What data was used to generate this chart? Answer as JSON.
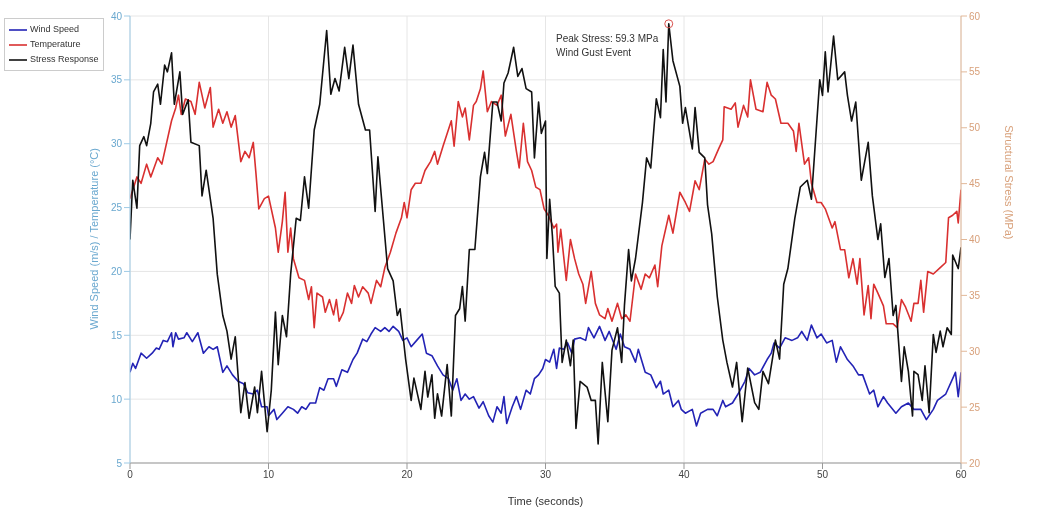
{
  "chart_data": {
    "type": "line",
    "xlabel": "Time (seconds)",
    "ylabel": "Wind Speed (m/s) / Temperature (°C)",
    "y2label": "Structural Stress (MPa)",
    "xlim": [
      0,
      60
    ],
    "xticks": [
      0,
      10,
      20,
      30,
      40,
      50,
      60
    ],
    "ylim": [
      5,
      40
    ],
    "yticks": [
      5,
      10,
      15,
      20,
      25,
      30,
      35,
      40
    ],
    "y2lim": [
      20,
      60
    ],
    "y2ticks": [
      20,
      25,
      30,
      35,
      40,
      45,
      50,
      55,
      60
    ],
    "grid": true,
    "legend": "top left",
    "marker": "none",
    "line_style": "solid",
    "annotations": [
      "Peak Stress: 59.3 MPa",
      "Wind Gust Event"
    ],
    "series": [
      {
        "name": "Wind Speed",
        "color": "#2323b5",
        "x": [
          0,
          0.2,
          0.4,
          0.8,
          1.2,
          1.6,
          1.9,
          2.1,
          2.4,
          2.7,
          3,
          3.1,
          3.3,
          3.5,
          3.9,
          4.1,
          4.5,
          4.9,
          5.3,
          5.7,
          6,
          6.3,
          6.7,
          7,
          7.4,
          7.8,
          8.2,
          8.5,
          8.9,
          9.2,
          9.5,
          9.9,
          10,
          10.4,
          10.6,
          11,
          11.4,
          11.8,
          12.1,
          12.4,
          12.7,
          13,
          13.4,
          13.7,
          14,
          14.3,
          14.7,
          14.9,
          15.3,
          15.7,
          16.1,
          16.4,
          16.8,
          17.1,
          17.4,
          17.7,
          18.1,
          18.4,
          18.7,
          19,
          19.4,
          19.7,
          20,
          20.3,
          20.7,
          21.1,
          21.4,
          21.8,
          22.2,
          22.6,
          23,
          23.3,
          23.6,
          23.9,
          24.2,
          24.5,
          24.8,
          25.2,
          25.5,
          25.9,
          26.2,
          26.5,
          26.8,
          27,
          27.2,
          27.6,
          27.9,
          28.2,
          28.6,
          28.9,
          29.2,
          29.5,
          29.8,
          30,
          30.3,
          30.6,
          30.8,
          31,
          31.3,
          31.6,
          31.9,
          32.1,
          32.5,
          32.9,
          33.1,
          33.5,
          33.9,
          34.3,
          34.6,
          35.1,
          35.4,
          35.7,
          36.1,
          36.5,
          36.7,
          37.2,
          37.6,
          38,
          38.3,
          38.5,
          38.9,
          39.2,
          39.6,
          39.8,
          40.1,
          40.6,
          40.9,
          41.2,
          41.7,
          42.1,
          42.4,
          42.8,
          43,
          43.5,
          43.9,
          44.4,
          44.7,
          45.1,
          45.5,
          46,
          46.3,
          46.5,
          46.9,
          47.3,
          47.8,
          48.2,
          48.5,
          48.9,
          49.2,
          49.6,
          49.9,
          50.3,
          50.7,
          51,
          51.3,
          51.8,
          52.2,
          52.6,
          52.9,
          53.4,
          53.7,
          54,
          54.4,
          54.7,
          55.3,
          55.7,
          56.2,
          56.6,
          57.1,
          57.5,
          58,
          58.3,
          58.9,
          59.6,
          59.8,
          60
        ],
        "values": [
          12.1,
          12.8,
          12.4,
          13.6,
          13.2,
          13.6,
          14,
          13.9,
          14.6,
          14.5,
          15.2,
          14.1,
          15.2,
          14.7,
          14.8,
          15.2,
          14.5,
          15.2,
          13.6,
          14.1,
          13.9,
          14.1,
          12.1,
          12.6,
          11.9,
          11.4,
          11.2,
          10.5,
          10.4,
          10.7,
          9.4,
          9.4,
          8.7,
          9.2,
          8.4,
          8.9,
          9.4,
          9.2,
          8.9,
          9.4,
          9.2,
          9.7,
          9.7,
          10.9,
          10.7,
          11.6,
          11.6,
          11,
          12.3,
          12.1,
          13.1,
          13.6,
          14.7,
          14.5,
          15.1,
          15.6,
          15.3,
          15.6,
          15.3,
          15.7,
          15.3,
          14.6,
          14.8,
          14.1,
          14.6,
          15.1,
          13.6,
          13.4,
          12.6,
          11.9,
          11.6,
          10.7,
          11.6,
          9.9,
          10.4,
          10,
          10.2,
          9.3,
          9.8,
          8.7,
          8.2,
          9.4,
          8.9,
          10.2,
          8.1,
          9.4,
          10.2,
          9.2,
          10.7,
          10.4,
          11.6,
          11.9,
          12.4,
          13.1,
          12.9,
          13.9,
          12.4,
          14,
          13.9,
          14.4,
          13.6,
          14.7,
          14.8,
          14.6,
          15.6,
          14.8,
          15.7,
          14.6,
          15.3,
          13.9,
          15.1,
          14.1,
          13.9,
          12.9,
          13.9,
          12.1,
          11.9,
          10.9,
          11.4,
          10.4,
          10.7,
          9.4,
          9.9,
          9.2,
          8.9,
          9.2,
          7.9,
          8.9,
          9.2,
          9.2,
          8.7,
          9.9,
          9.4,
          9.7,
          10.4,
          11.4,
          12.4,
          11.9,
          12.1,
          13.1,
          13.6,
          14.4,
          14,
          14.8,
          14.6,
          14.8,
          15.3,
          14.6,
          15.8,
          14.8,
          15.1,
          14.4,
          14.6,
          12.9,
          14.1,
          13.1,
          12.6,
          11.9,
          11.9,
          10.4,
          10.7,
          9.4,
          10.2,
          9.7,
          8.9,
          9.4,
          9.7,
          9.2,
          9.2,
          8.4,
          9.2,
          9.9,
          10.4,
          12.1,
          10.2,
          12.1
        ]
      },
      {
        "name": "Temperature",
        "color": "#d93030",
        "x": [
          0,
          0.5,
          0.8,
          1.2,
          1.5,
          2,
          2.3,
          3,
          3.3,
          3.5,
          3.7,
          4,
          4.4,
          4.7,
          5,
          5.4,
          5.8,
          6,
          6.4,
          6.7,
          7,
          7.3,
          7.6,
          8,
          8.3,
          8.6,
          8.9,
          9.1,
          9.3,
          9.7,
          10,
          10.5,
          10.7,
          11,
          11.2,
          11.4,
          11.6,
          11.8,
          12.2,
          12.6,
          12.9,
          13.1,
          13.3,
          13.5,
          13.9,
          14.1,
          14.4,
          14.7,
          14.9,
          15.1,
          15.4,
          15.7,
          16,
          16.2,
          16.5,
          16.8,
          17.2,
          17.4,
          17.8,
          18.1,
          18.4,
          18.8,
          19.2,
          19.6,
          19.8,
          20,
          20.3,
          20.6,
          21,
          21.3,
          21.7,
          22,
          22.2,
          22.6,
          22.9,
          23.2,
          23.4,
          23.7,
          24,
          24.2,
          24.5,
          24.8,
          25,
          25.3,
          25.5,
          25.8,
          26.1,
          26.5,
          26.8,
          27.1,
          27.5,
          27.9,
          28.1,
          28.4,
          28.7,
          29,
          29.3,
          29.6,
          29.9,
          30.2,
          30.6,
          30.8,
          30.9,
          31.1,
          31.5,
          31.8,
          32.1,
          32.4,
          32.7,
          32.9,
          33.3,
          33.6,
          33.9,
          34.3,
          34.5,
          34.8,
          35.2,
          35.5,
          35.8,
          36.1,
          36.5,
          36.9,
          37.2,
          37.5,
          37.9,
          38.1,
          38.4,
          38.9,
          39.2,
          39.7,
          40.1,
          40.4,
          40.8,
          41.1,
          41.5,
          41.8,
          42.1,
          42.5,
          42.8,
          42.9,
          43.4,
          43.7,
          43.9,
          44.3,
          44.6,
          44.8,
          45.2,
          45.7,
          46,
          46.3,
          46.6,
          47,
          47.5,
          47.9,
          48.1,
          48.3,
          48.7,
          49,
          49.2,
          49.6,
          49.9,
          50.2,
          50.7,
          50.9,
          51.3,
          51.6,
          51.9,
          52.2,
          52.5,
          52.7,
          53,
          53.3,
          53.5,
          53.7,
          54,
          54.4,
          54.6,
          55.1,
          55.4,
          55.7,
          56,
          56.4,
          56.6,
          56.9,
          57.1,
          57.3,
          57.6,
          58,
          58.5,
          58.9,
          59.1,
          59.4,
          59.7,
          59.8,
          60
        ],
        "values": [
          25.7,
          27.4,
          26.9,
          28.4,
          27.4,
          28.9,
          28.4,
          31.8,
          32.8,
          33.8,
          32.3,
          33.5,
          33.3,
          32.3,
          34.8,
          32.8,
          34.4,
          31.3,
          32.7,
          31.6,
          32.5,
          31.3,
          32.2,
          28.6,
          29.4,
          28.9,
          30.1,
          27.6,
          24.9,
          25.7,
          25.9,
          23.4,
          21.5,
          23.9,
          26.2,
          21.5,
          23.4,
          21,
          19.5,
          19.3,
          17.8,
          18.8,
          15.6,
          18.3,
          18,
          16.8,
          17.8,
          16.6,
          17.8,
          16.1,
          16.8,
          18.3,
          17.5,
          18.9,
          18,
          18.8,
          18.3,
          17.5,
          19.3,
          18.8,
          20.3,
          21.5,
          23,
          24.2,
          25.4,
          24.2,
          26.4,
          26.9,
          26.9,
          27.9,
          28.6,
          29.4,
          28.4,
          29.8,
          30.8,
          31.8,
          29.8,
          33.3,
          32.1,
          32.8,
          30.3,
          33,
          33.3,
          34.3,
          35.7,
          32.5,
          33.3,
          33,
          33.8,
          30.6,
          32.3,
          29.4,
          28.1,
          31.6,
          28.6,
          27.9,
          26.6,
          26.4,
          24.9,
          24.4,
          23.4,
          23.7,
          21.5,
          23.3,
          19.3,
          22.5,
          21,
          19.8,
          19,
          17.5,
          20,
          17.5,
          16.6,
          16.3,
          17.1,
          16.1,
          17.5,
          16.3,
          16.6,
          16.1,
          19.8,
          18.6,
          19.8,
          19.5,
          20.5,
          18.8,
          22,
          24.4,
          23,
          26.2,
          25.4,
          24.7,
          27.1,
          26.4,
          28.8,
          28.4,
          28.6,
          29.6,
          30.3,
          32.9,
          32.7,
          33.2,
          31.3,
          33,
          32.1,
          35,
          32.7,
          32.5,
          34.8,
          33.8,
          33.5,
          31.6,
          31.6,
          31,
          29.4,
          31.6,
          28.4,
          28.9,
          26.9,
          25.4,
          25.4,
          24.9,
          23.4,
          23.9,
          21.7,
          21.7,
          19.5,
          21,
          19,
          21,
          16.6,
          18.9,
          16.3,
          19,
          18.3,
          17.3,
          15.9,
          15.9,
          15.6,
          17.8,
          17.2,
          16.1,
          17.5,
          17.5,
          19.3,
          16.8,
          20,
          19.8,
          20.3,
          20.7,
          24.2,
          24.4,
          24.7,
          23.8,
          26.4
        ]
      },
      {
        "name": "Stress Response",
        "color": "#111111",
        "axis": "y2",
        "x": [
          0,
          0.2,
          0.5,
          0.7,
          1,
          1.2,
          1.5,
          1.7,
          2,
          2.2,
          2.5,
          2.7,
          3,
          3.2,
          3.6,
          3.8,
          4.2,
          4.4,
          5,
          5.2,
          5.5,
          6,
          6.3,
          6.7,
          7,
          7.3,
          7.6,
          8,
          8.3,
          8.6,
          9,
          9.2,
          9.5,
          9.9,
          10.2,
          10.5,
          10.7,
          11,
          11.3,
          11.6,
          12,
          12.3,
          12.6,
          12.9,
          13.3,
          13.7,
          14.2,
          14.5,
          14.8,
          15.1,
          15.5,
          15.8,
          16.1,
          16.5,
          17,
          17.3,
          17.7,
          17.9,
          18.3,
          18.6,
          19,
          19.3,
          19.5,
          19.9,
          20.3,
          20.5,
          21,
          21.3,
          21.5,
          21.8,
          22,
          22.2,
          22.5,
          22.9,
          23.2,
          23.5,
          23.8,
          24,
          24.2,
          24.5,
          24.9,
          25.3,
          25.6,
          25.8,
          26.2,
          26.5,
          26.8,
          27,
          27.3,
          27.7,
          28,
          28.3,
          28.6,
          29,
          29.2,
          29.5,
          29.7,
          30,
          30.1,
          30.3,
          30.5,
          30.7,
          31,
          31.2,
          31.5,
          31.8,
          32,
          32.2,
          32.5,
          33,
          33.3,
          33.6,
          33.8,
          34.1,
          34.5,
          34.8,
          35.2,
          35.5,
          35.7,
          36,
          36.2,
          36.5,
          37,
          37.3,
          37.6,
          38,
          38.3,
          38.5,
          38.7,
          38.9,
          39.2,
          39.7,
          39.9,
          40.1,
          40.6,
          40.8,
          41.1,
          41.5,
          41.7,
          42,
          42.4,
          42.8,
          43.1,
          43.5,
          43.8,
          44.2,
          44.6,
          45.1,
          45.4,
          45.7,
          46.1,
          46.6,
          46.9,
          47.2,
          47.5,
          48,
          48.4,
          48.9,
          49.2,
          49.8,
          50,
          50.2,
          50.4,
          50.8,
          51.1,
          51.6,
          51.8,
          52.1,
          52.4,
          52.8,
          53.3,
          53.6,
          54,
          54.2,
          54.5,
          54.8,
          55.1,
          55.3,
          55.7,
          55.9,
          56.2,
          56.5,
          56.6,
          56.9,
          57.2,
          57.4,
          57.7,
          58,
          58.2,
          58.5,
          58.7,
          59,
          59.3,
          59.4,
          59.8,
          60
        ],
        "values": [
          40,
          45.3,
          42.8,
          48.4,
          49.2,
          48.4,
          50.4,
          53.2,
          53.9,
          52.1,
          55.6,
          55,
          56.7,
          52.1,
          55,
          51.2,
          52.5,
          48.7,
          48.4,
          43.9,
          46.2,
          41.9,
          36.9,
          33.2,
          31.8,
          29.3,
          31.3,
          24.5,
          27.2,
          24,
          26.8,
          24.5,
          28.2,
          22.8,
          26.5,
          33.5,
          28.8,
          33.2,
          31.3,
          36.9,
          41.9,
          41.7,
          45.6,
          42.8,
          49.8,
          52.1,
          58.7,
          53,
          54.4,
          53.3,
          57.2,
          54.4,
          57.4,
          52.1,
          49.8,
          49.8,
          42.5,
          47.4,
          41.7,
          37.4,
          36.3,
          33.2,
          33.8,
          29.3,
          25.6,
          27.6,
          24.8,
          28.2,
          25.9,
          27.9,
          24,
          26.2,
          24.2,
          28.8,
          24.2,
          33.2,
          33.8,
          35.8,
          32.7,
          39.1,
          39.1,
          45.6,
          47.8,
          45.9,
          52.3,
          52.3,
          50.6,
          54,
          54.9,
          57.2,
          54.6,
          55.3,
          53.5,
          53.2,
          47.3,
          52.3,
          49.5,
          50.6,
          38.3,
          43.6,
          40.3,
          35.8,
          35.2,
          29,
          31,
          28.7,
          31,
          23.1,
          27.3,
          26.8,
          25.6,
          25.6,
          21.7,
          29,
          23.7,
          30.1,
          32.1,
          29,
          34.1,
          39.1,
          36.3,
          38.3,
          43.3,
          47.3,
          46.4,
          52.6,
          50.9,
          57,
          52.3,
          59.3,
          56,
          53.7,
          50.4,
          51.8,
          48.1,
          51.8,
          47.8,
          47.3,
          43.1,
          40.5,
          34.9,
          31,
          29,
          26.8,
          29,
          23.7,
          28.5,
          25.4,
          24.8,
          28.2,
          27.1,
          31,
          29.3,
          36,
          37.4,
          41.9,
          44.7,
          45.3,
          43.6,
          54.3,
          52.9,
          56.8,
          53.2,
          58.2,
          54.3,
          55,
          52.9,
          50.6,
          52.3,
          45.3,
          48.7,
          43.9,
          40,
          41.4,
          36.6,
          38.3,
          33.2,
          34.1,
          27.3,
          30.4,
          28.2,
          24.2,
          28.2,
          27.9,
          25.6,
          28.7,
          24.5,
          31.5,
          29.9,
          31.8,
          30.4,
          32.1,
          31.5,
          38.6,
          37.4,
          39.3
        ]
      },
      {
        "type": "scatter",
        "color": "#d9534f",
        "axis": "y2",
        "marker": "circle",
        "x": [
          38.9
        ],
        "values": [
          59.3
        ]
      }
    ]
  }
}
